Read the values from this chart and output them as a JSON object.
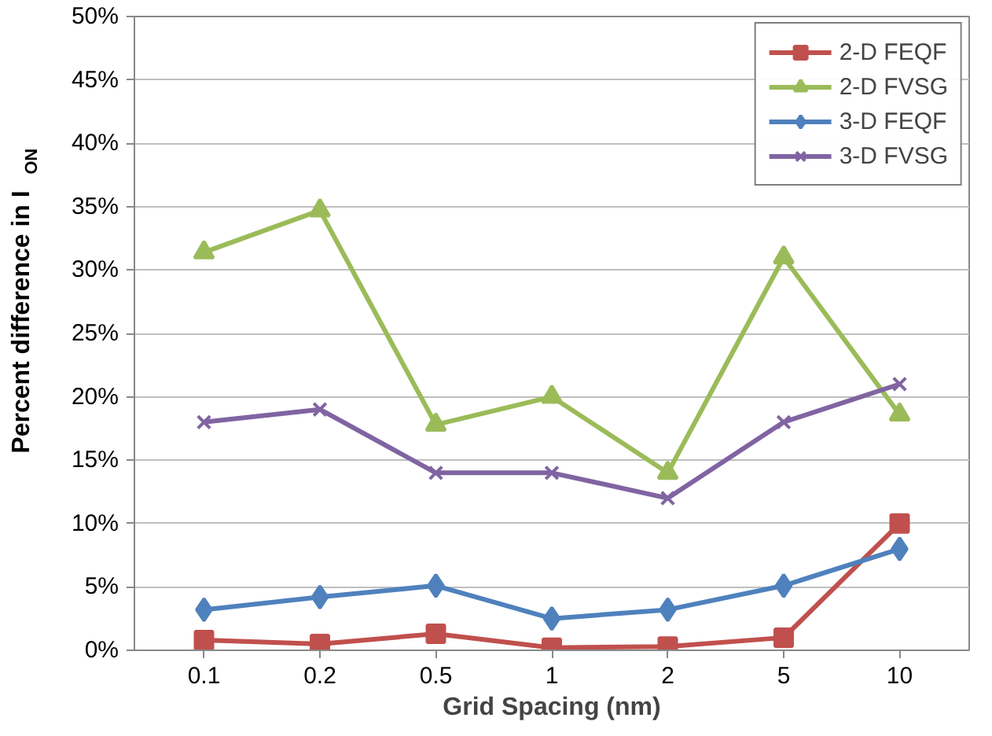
{
  "chart_data": {
    "type": "line",
    "xlabel": "Grid Spacing (nm)",
    "ylabel": "Percent difference in I$_{ON}$",
    "categories": [
      "0.1",
      "0.2",
      "0.5",
      "1",
      "2",
      "5",
      "10"
    ],
    "series": [
      {
        "name": "2-D FEQF",
        "color": "#c0504d",
        "marker": "square",
        "values": [
          0.8,
          0.5,
          1.3,
          0.2,
          0.3,
          1.0,
          10.0
        ]
      },
      {
        "name": "2-D FVSG",
        "color": "#9bbb59",
        "marker": "triangle",
        "values": [
          31.4,
          34.7,
          17.8,
          20.0,
          14.0,
          31.0,
          18.6
        ]
      },
      {
        "name": "3-D FEQF",
        "color": "#4f81bd",
        "marker": "diamond",
        "values": [
          3.2,
          4.2,
          5.1,
          2.5,
          3.2,
          5.1,
          8.0
        ]
      },
      {
        "name": "3-D FVSG",
        "color": "#8064a2",
        "marker": "cross",
        "values": [
          18.0,
          19.0,
          14.0,
          14.0,
          12.0,
          18.0,
          21.0
        ]
      }
    ],
    "ylim": [
      0,
      50
    ],
    "yticks": [
      {
        "value": 0,
        "label": "0%"
      },
      {
        "value": 5,
        "label": "5%"
      },
      {
        "value": 10,
        "label": "10%"
      },
      {
        "value": 15,
        "label": "15%"
      },
      {
        "value": 20,
        "label": "20%"
      },
      {
        "value": 25,
        "label": "25%"
      },
      {
        "value": 30,
        "label": "30%"
      },
      {
        "value": 35,
        "label": "35%"
      },
      {
        "value": 40,
        "label": "40%"
      },
      {
        "value": 45,
        "label": "45%"
      },
      {
        "value": 50,
        "label": "50%"
      }
    ],
    "grid": "y",
    "legend": "top right",
    "line_style": "solid"
  }
}
